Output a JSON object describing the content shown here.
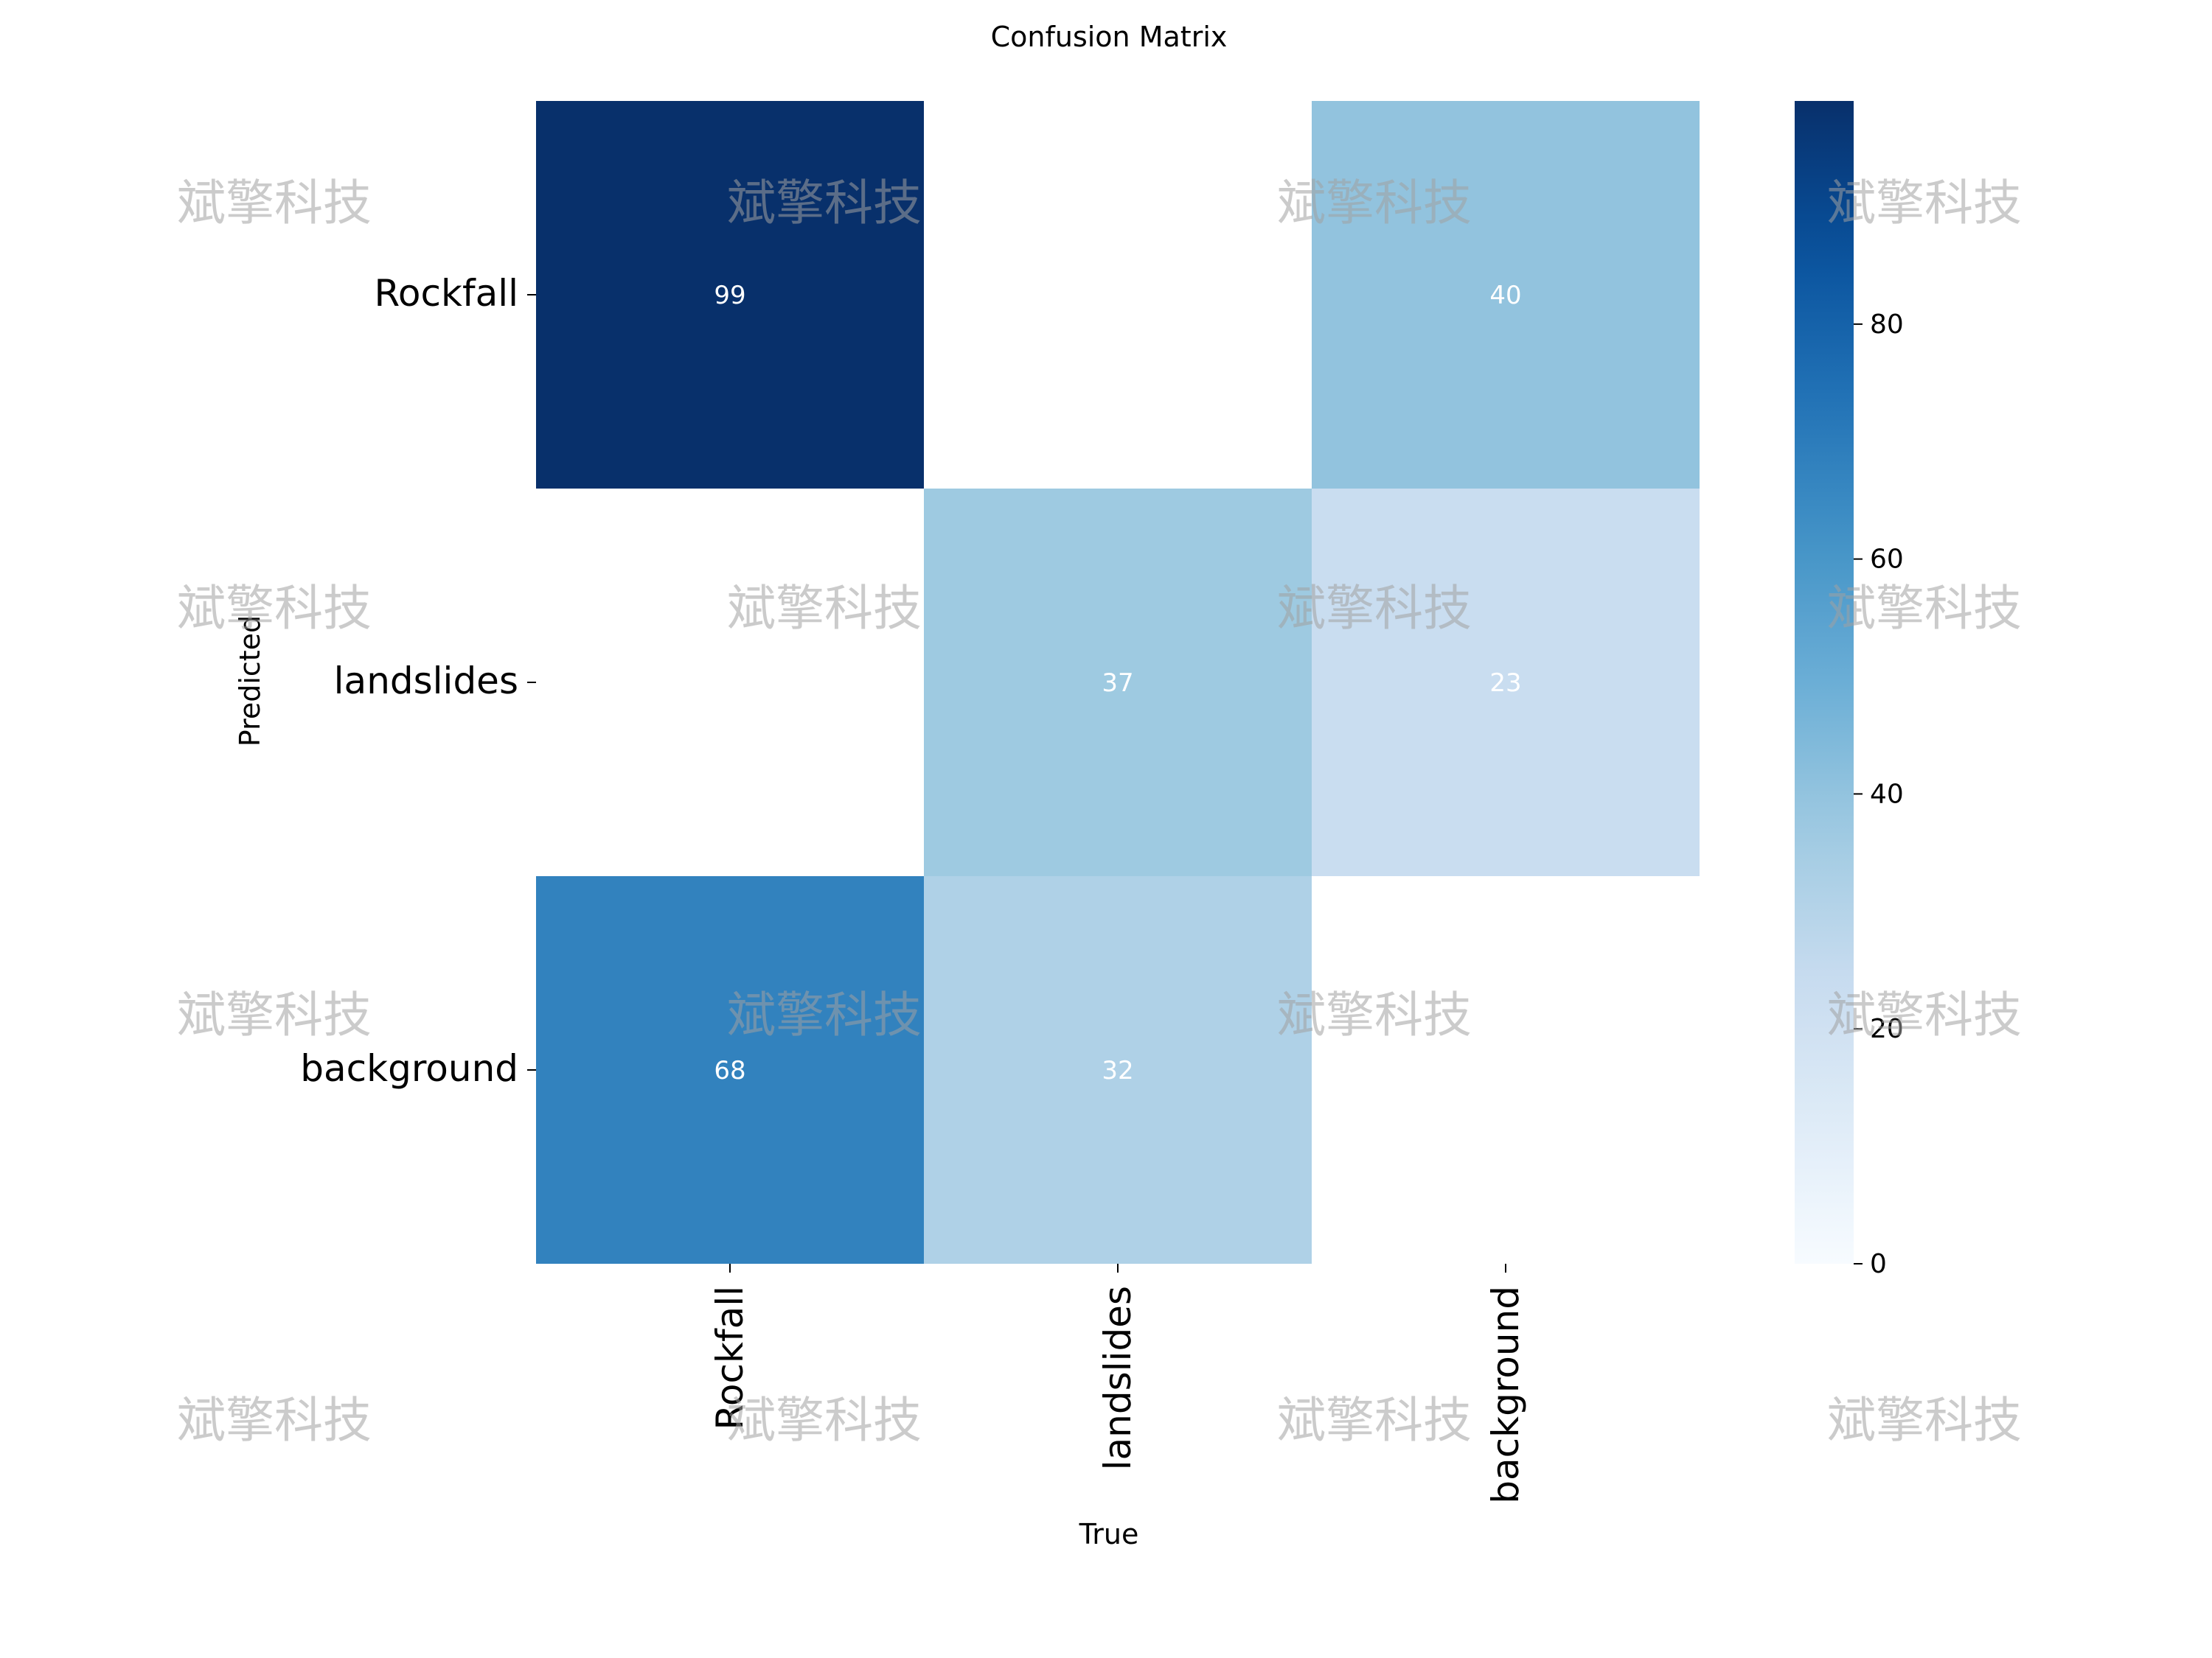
{
  "chart_data": {
    "type": "heatmap",
    "title": "Confusion Matrix",
    "xlabel": "True",
    "ylabel": "Predicted",
    "x_categories": [
      "Rockfall",
      "landslides",
      "background"
    ],
    "y_categories": [
      "Rockfall",
      "landslides",
      "background"
    ],
    "values": [
      [
        99,
        null,
        40
      ],
      [
        null,
        37,
        23
      ],
      [
        68,
        32,
        null
      ]
    ],
    "colormap": "Blues",
    "color_min": 0,
    "color_max": 99,
    "colorbar_ticks": [
      0,
      20,
      40,
      60,
      80
    ],
    "value_label_color": "#ffffff"
  },
  "watermark_text": "斌擎科技"
}
